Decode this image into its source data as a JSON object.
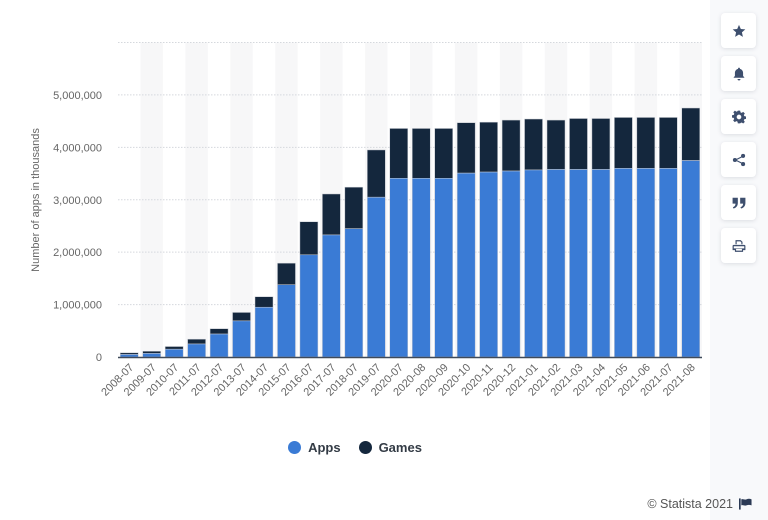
{
  "chart_data": {
    "type": "bar",
    "stacked": true,
    "title": "",
    "xlabel": "",
    "ylabel": "Number of apps in thousands",
    "ylim": [
      0,
      6000000
    ],
    "yticks": [
      0,
      1000000,
      2000000,
      3000000,
      4000000,
      5000000
    ],
    "ytick_labels": [
      "0",
      "1,000,000",
      "2,000,000",
      "3,000,000",
      "4,000,000",
      "5,000,000"
    ],
    "grid": true,
    "legend_position": "bottom",
    "categories": [
      "2008-07",
      "2009-07",
      "2010-07",
      "2011-07",
      "2012-07",
      "2013-07",
      "2014-07",
      "2015-07",
      "2016-07",
      "2017-07",
      "2018-07",
      "2019-07",
      "2020-07",
      "2020-08",
      "2020-09",
      "2020-10",
      "2020-11",
      "2020-12",
      "2021-01",
      "2021-02",
      "2021-03",
      "2021-04",
      "2021-05",
      "2021-06",
      "2021-07",
      "2021-08"
    ],
    "series": [
      {
        "name": "Apps",
        "color": "#3a7bd5",
        "values": [
          50000,
          70000,
          150000,
          250000,
          440000,
          690000,
          950000,
          1380000,
          1950000,
          2330000,
          2450000,
          3050000,
          3410000,
          3410000,
          3410000,
          3510000,
          3530000,
          3550000,
          3570000,
          3580000,
          3580000,
          3580000,
          3600000,
          3600000,
          3600000,
          3750000
        ]
      },
      {
        "name": "Games",
        "color": "#14273d",
        "values": [
          30000,
          40000,
          50000,
          90000,
          100000,
          160000,
          200000,
          410000,
          630000,
          780000,
          790000,
          900000,
          950000,
          950000,
          950000,
          960000,
          950000,
          970000,
          970000,
          940000,
          970000,
          970000,
          970000,
          970000,
          970000,
          1000000
        ]
      }
    ]
  },
  "legend": {
    "items": [
      {
        "label": "Apps",
        "color": "#3a7bd5"
      },
      {
        "label": "Games",
        "color": "#14273d"
      }
    ]
  },
  "toolbar": {
    "buttons": [
      {
        "icon": "star-icon",
        "name": "favorite-button"
      },
      {
        "icon": "bell-icon",
        "name": "notification-button"
      },
      {
        "icon": "gear-icon",
        "name": "settings-button"
      },
      {
        "icon": "share-icon",
        "name": "share-button"
      },
      {
        "icon": "quote-icon",
        "name": "cite-button"
      },
      {
        "icon": "print-icon",
        "name": "print-button"
      }
    ]
  },
  "footer": {
    "credit": "© Statista 2021",
    "flag_icon": "flag-icon"
  }
}
